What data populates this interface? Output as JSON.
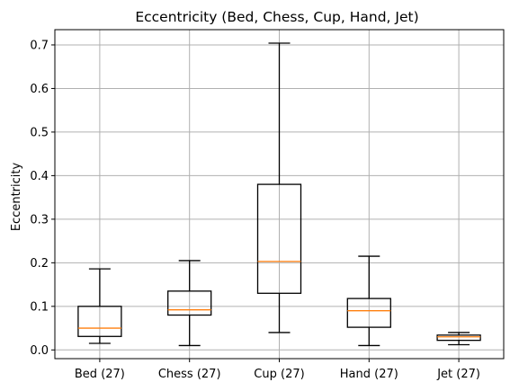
{
  "chart_data": {
    "type": "box",
    "title": "Eccentricity (Bed, Chess, Cup, Hand, Jet)",
    "xlabel": "",
    "ylabel": "Eccentricity",
    "ylim": [
      -0.02,
      0.735
    ],
    "yticks": [
      0.0,
      0.1,
      0.2,
      0.3,
      0.4,
      0.5,
      0.6,
      0.7
    ],
    "ytick_labels": [
      "0.0",
      "0.1",
      "0.2",
      "0.3",
      "0.4",
      "0.5",
      "0.6",
      "0.7"
    ],
    "grid": true,
    "categories": [
      "Bed (27)",
      "Chess (27)",
      "Cup (27)",
      "Hand (27)",
      "Jet (27)"
    ],
    "boxes": [
      {
        "whislo": 0.015,
        "q1": 0.031,
        "med": 0.05,
        "q3": 0.1,
        "whishi": 0.186
      },
      {
        "whislo": 0.01,
        "q1": 0.08,
        "med": 0.092,
        "q3": 0.135,
        "whishi": 0.205
      },
      {
        "whislo": 0.04,
        "q1": 0.13,
        "med": 0.203,
        "q3": 0.38,
        "whishi": 0.704
      },
      {
        "whislo": 0.01,
        "q1": 0.052,
        "med": 0.09,
        "q3": 0.118,
        "whishi": 0.215
      },
      {
        "whislo": 0.012,
        "q1": 0.022,
        "med": 0.03,
        "q3": 0.034,
        "whishi": 0.04
      }
    ],
    "colors": {
      "box": "#000000",
      "median": "#ff7f0e",
      "grid": "#b0b0b0"
    }
  }
}
